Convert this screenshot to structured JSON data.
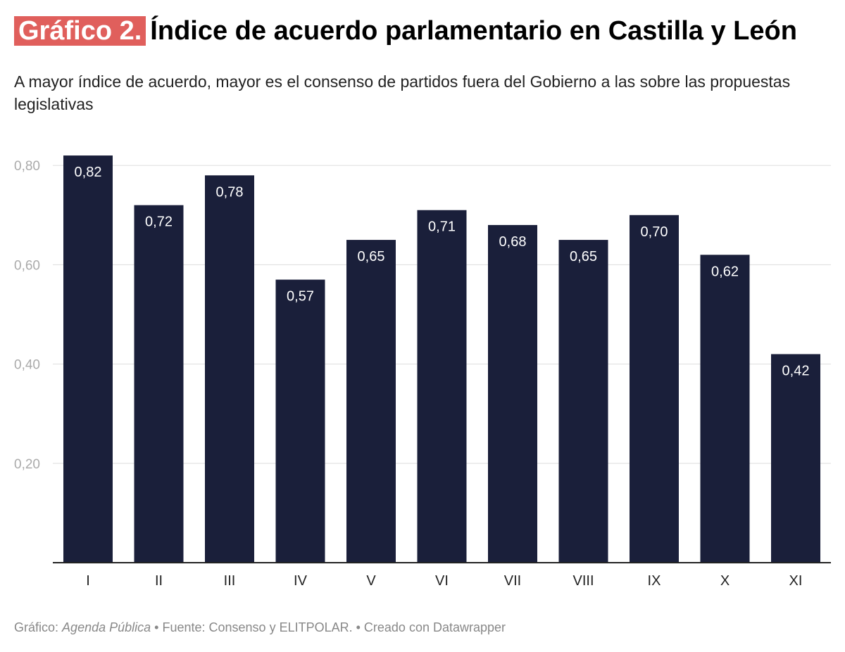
{
  "header": {
    "tag": "Gráfico 2.",
    "title": "Índice de acuerdo parlamentario en Castilla y León",
    "subtitle": "A mayor índice de acuerdo, mayor es el consenso de partidos fuera del Gobierno a las sobre las propuestas legislativas"
  },
  "footer": {
    "prefix": "Gráfico:",
    "source_name": "Agenda Pública",
    "rest": "• Fuente: Consenso y ELITPOLAR. • Creado con Datawrapper"
  },
  "colors": {
    "bar": "#1a1f3a",
    "tag": "#e05f5c",
    "grid": "#dddddd",
    "axis": "#222222",
    "tick_text": "#aaaaaa"
  },
  "chart_data": {
    "type": "bar",
    "categories": [
      "I",
      "II",
      "III",
      "IV",
      "V",
      "VI",
      "VII",
      "VIII",
      "IX",
      "X",
      "XI"
    ],
    "values": [
      0.82,
      0.72,
      0.78,
      0.57,
      0.65,
      0.71,
      0.68,
      0.65,
      0.7,
      0.62,
      0.42
    ],
    "value_labels": [
      "0,82",
      "0,72",
      "0,78",
      "0,57",
      "0,65",
      "0,71",
      "0,68",
      "0,65",
      "0,70",
      "0,62",
      "0,42"
    ],
    "y_ticks": [
      0.2,
      0.4,
      0.6,
      0.8
    ],
    "y_tick_labels": [
      "0,20",
      "0,40",
      "0,60",
      "0,80"
    ],
    "ylim": [
      0,
      0.82
    ],
    "grid": true
  }
}
